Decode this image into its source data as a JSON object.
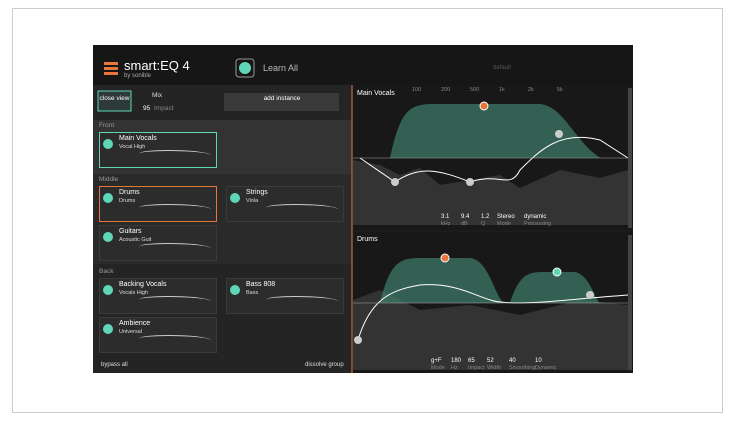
{
  "header": {
    "logo": "smart:EQ 4",
    "byline": "by sonible",
    "learn": "Learn All",
    "preset": "default"
  },
  "controls": {
    "close": "close view",
    "mix": "Mix",
    "impact_value": "95",
    "impact": "Impact",
    "add": "add instance"
  },
  "groups": [
    {
      "name": "Front",
      "tracks": [
        {
          "name": "Main Vocals",
          "profile": "Vocal High"
        }
      ]
    },
    {
      "name": "Middle",
      "tracks": [
        {
          "name": "Drums",
          "profile": "Drums"
        },
        {
          "name": "Strings",
          "profile": "Viola"
        },
        {
          "name": "Guitars",
          "profile": "Acoustic Guit"
        }
      ]
    },
    {
      "name": "Back",
      "tracks": [
        {
          "name": "Backing Vocals",
          "profile": "Vocals High"
        },
        {
          "name": "Bass 808",
          "profile": "Bass"
        },
        {
          "name": "Ambience",
          "profile": "Universal"
        }
      ]
    }
  ],
  "footer": {
    "bypass": "bypass all",
    "dissolve": "dissolve group"
  },
  "freq_labels": [
    "100",
    "200",
    "500",
    "1k",
    "2k",
    "5k"
  ],
  "panels": [
    {
      "title": "Main Vocals",
      "params": [
        {
          "value": "3.1",
          "label": "kHz"
        },
        {
          "value": "9.4",
          "label": "dB"
        },
        {
          "value": "1.2",
          "label": "Q"
        },
        {
          "value": "Stereo",
          "label": "Mode"
        },
        {
          "value": "dynamic",
          "label": "Processing"
        }
      ]
    },
    {
      "title": "Drums",
      "params": [
        {
          "value": "g+F",
          "label": "Mode"
        },
        {
          "value": "180",
          "label": "Hz"
        },
        {
          "value": "65",
          "label": "Impact"
        },
        {
          "value": "52",
          "label": "Width"
        },
        {
          "value": "40",
          "label": "Smoothing"
        },
        {
          "value": "10",
          "label": "Dynamic"
        }
      ]
    }
  ]
}
